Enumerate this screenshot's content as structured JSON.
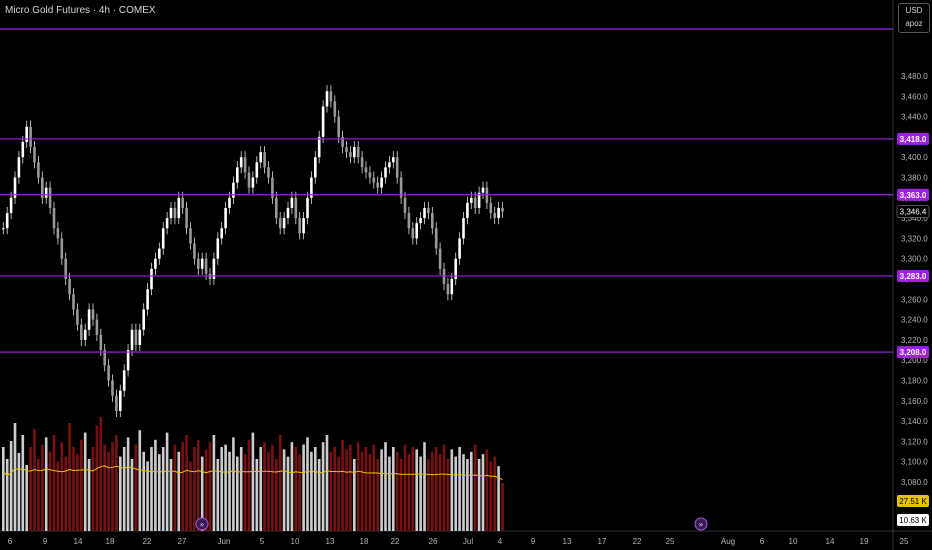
{
  "header": {
    "title": "Micro Gold Futures · 4h · COMEX"
  },
  "currency": {
    "code": "USD",
    "user": "apoz"
  },
  "colors": {
    "bg": "#000000",
    "level": "#a020e0",
    "volUp": "#cccccc",
    "volDown": "#7a1010",
    "ma": "#e6c200",
    "candle": "#dddddd"
  },
  "y_axis": {
    "ticks": [
      "3,480.0",
      "3,460.0",
      "3,440.0",
      "3,420.0",
      "3,400.0",
      "3,380.0",
      "3,360.0",
      "3,340.0",
      "3,320.0",
      "3,300.0",
      "3,280.0",
      "3,260.0",
      "3,240.0",
      "3,220.0",
      "3,200.0",
      "3,180.0",
      "3,160.0",
      "3,140.0",
      "3,120.0",
      "3,100.0",
      "3,080.0"
    ],
    "min": 3080,
    "max": 3480
  },
  "levels": [
    {
      "label": "",
      "value": 3496
    },
    {
      "label": "3,418.0",
      "value": 3418
    },
    {
      "label": "3,363.0",
      "value": 3363
    },
    {
      "label": "3,283.0",
      "value": 3283
    },
    {
      "label": "3,208.0",
      "value": 3208
    }
  ],
  "last_price": {
    "label": "3,346.4",
    "value": 3346.4
  },
  "volume_labels": {
    "ma": "27.51 K",
    "vol": "10.63 K"
  },
  "x_axis": {
    "ticks": [
      "6",
      "9",
      "14",
      "18",
      "22",
      "27",
      "Jun",
      "5",
      "10",
      "13",
      "18",
      "22",
      "26",
      "Jul",
      "4",
      "9",
      "13",
      "17",
      "22",
      "25",
      "Aug",
      "6",
      "10",
      "14",
      "19",
      "25"
    ]
  },
  "icons": [
    "goto-realtime-icon",
    "goto-realtime-icon"
  ],
  "chart_data": {
    "type": "candlestick",
    "title": "Micro Gold Futures · 4h · COMEX",
    "y_range": [
      3080,
      3480
    ],
    "close": [
      3330,
      3345,
      3360,
      3380,
      3400,
      3415,
      3430,
      3410,
      3395,
      3380,
      3360,
      3370,
      3350,
      3330,
      3320,
      3300,
      3280,
      3265,
      3250,
      3235,
      3220,
      3230,
      3250,
      3240,
      3225,
      3210,
      3195,
      3180,
      3165,
      3150,
      3170,
      3190,
      3210,
      3230,
      3215,
      3230,
      3250,
      3270,
      3290,
      3300,
      3310,
      3330,
      3340,
      3350,
      3340,
      3360,
      3350,
      3330,
      3315,
      3300,
      3290,
      3300,
      3285,
      3280,
      3300,
      3320,
      3330,
      3350,
      3360,
      3375,
      3390,
      3400,
      3385,
      3370,
      3380,
      3395,
      3405,
      3390,
      3380,
      3360,
      3340,
      3330,
      3340,
      3350,
      3360,
      3340,
      3325,
      3340,
      3360,
      3380,
      3400,
      3420,
      3450,
      3465,
      3455,
      3440,
      3420,
      3410,
      3405,
      3400,
      3410,
      3400,
      3390,
      3385,
      3380,
      3375,
      3370,
      3380,
      3390,
      3395,
      3400,
      3380,
      3360,
      3345,
      3330,
      3320,
      3335,
      3340,
      3350,
      3345,
      3330,
      3310,
      3290,
      3275,
      3265,
      3280,
      3300,
      3320,
      3340,
      3355,
      3360,
      3350,
      3365,
      3370,
      3355,
      3345,
      3340,
      3350,
      3346.4
    ],
    "volume": [
      70,
      60,
      75,
      90,
      65,
      80,
      55,
      70,
      85,
      60,
      72,
      78,
      66,
      80,
      58,
      74,
      62,
      90,
      70,
      64,
      76,
      82,
      60,
      70,
      88,
      95,
      72,
      66,
      74,
      80,
      62,
      70,
      78,
      60,
      72,
      84,
      66,
      58,
      70,
      76,
      64,
      70,
      82,
      60,
      72,
      66,
      74,
      80,
      58,
      70,
      76,
      62,
      68,
      74,
      80,
      60,
      70,
      72,
      66,
      78,
      62,
      70,
      64,
      76,
      82,
      60,
      70,
      74,
      66,
      72,
      60,
      80,
      68,
      62,
      74,
      70,
      64,
      72,
      78,
      66,
      70,
      60,
      74,
      80,
      66,
      70,
      62,
      76,
      68,
      72,
      60,
      74,
      66,
      70,
      64,
      72,
      60,
      68,
      74,
      62,
      70,
      66,
      60,
      72,
      64,
      70,
      68,
      62,
      74,
      60,
      66,
      70,
      64,
      72,
      60,
      68,
      62,
      70,
      64,
      60,
      66,
      72,
      60,
      64,
      68,
      58,
      62,
      54,
      40
    ],
    "volume_ma_label": "27.51 K",
    "volume_label": "10.63 K"
  }
}
